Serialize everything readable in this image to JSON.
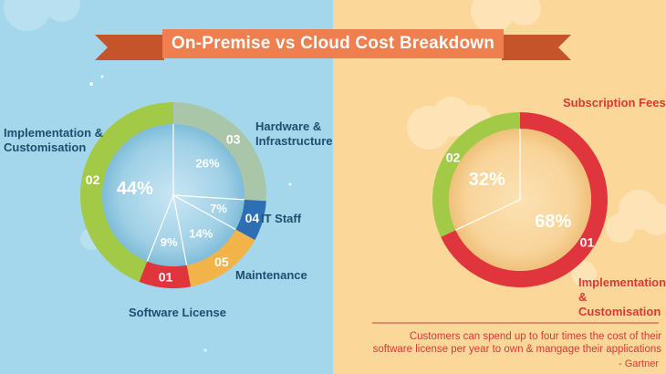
{
  "title": "On-Premise vs Cloud Cost Breakdown",
  "chart_data": [
    {
      "type": "pie",
      "slices": [
        {
          "label": "Hardware & Infrastructure",
          "number": "03",
          "value": 26,
          "value_label": "26%",
          "color": "#a9c7a8"
        },
        {
          "label": "IT Staff",
          "number": "04",
          "value": 7,
          "value_label": "7%",
          "color": "#2d6fb2"
        },
        {
          "label": "Maintenance",
          "number": "05",
          "value": 14,
          "value_label": "14%",
          "color": "#f2b348"
        },
        {
          "label": "Software License",
          "number": "01",
          "value": 9,
          "value_label": "9%",
          "color": "#e0353d"
        },
        {
          "label": "Implementation & Customisation",
          "number": "02",
          "value": 44,
          "value_label": "44%",
          "color": "#a3ca46"
        }
      ]
    },
    {
      "type": "pie",
      "slices": [
        {
          "label": "Subscription Fees",
          "number": "01",
          "value": 68,
          "value_label": "68%",
          "color": "#e0353d"
        },
        {
          "label": "Implementation & Customisation",
          "number": "02",
          "value": 32,
          "value_label": "32%",
          "color": "#a3ca46"
        }
      ]
    }
  ],
  "quote": {
    "line1": "Customers can spend up to four times the cost of their",
    "line2": "software license per year to own & mangage their applications",
    "attribution": "- Gartner"
  },
  "colors": {
    "left_bg": "#a4d6ec",
    "right_bg": "#fbd79a",
    "banner": "#ef7f4f",
    "banner_tail": "#c6542b",
    "dark_text": "#1d4f6e",
    "red_text": "#d83a33"
  }
}
